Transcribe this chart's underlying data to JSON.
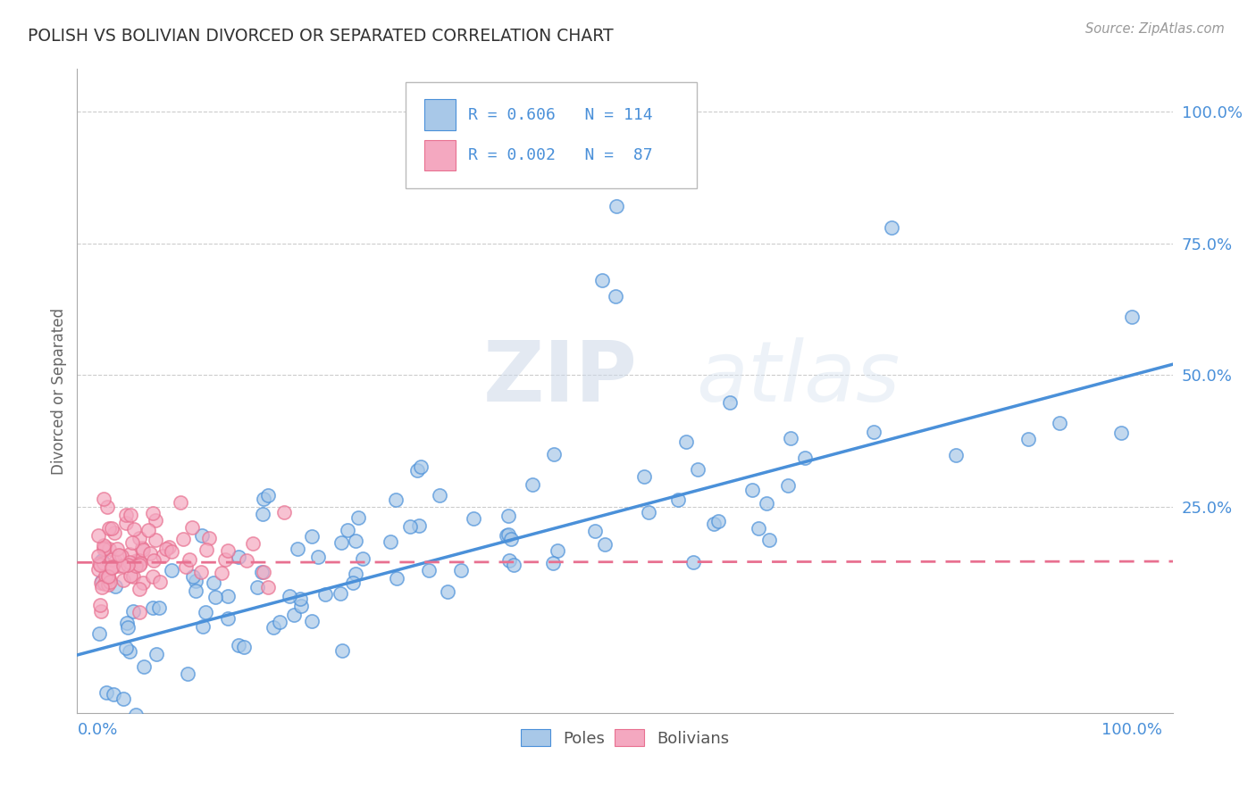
{
  "title": "POLISH VS BOLIVIAN DIVORCED OR SEPARATED CORRELATION CHART",
  "source": "Source: ZipAtlas.com",
  "ylabel": "Divorced or Separated",
  "poles_R": 0.606,
  "poles_N": 114,
  "bolivians_R": 0.002,
  "bolivians_N": 87,
  "poles_color": "#a8c8e8",
  "poles_line_color": "#4a90d9",
  "bolivians_color": "#f4a8c0",
  "bolivians_line_color": "#e87090",
  "background_color": "#ffffff",
  "grid_color": "#cccccc",
  "title_color": "#333333",
  "label_color": "#4a90d9",
  "watermark_zip": "ZIP",
  "watermark_atlas": "atlas",
  "legend_label1": "R = 0.606   N = 114",
  "legend_label2": "R = 0.002   N =  87",
  "bottom_label1": "Poles",
  "bottom_label2": "Bolivians"
}
